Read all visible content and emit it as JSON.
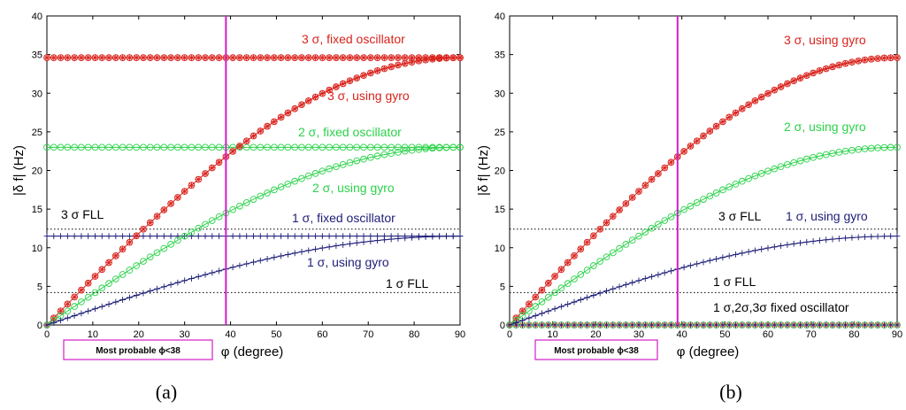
{
  "figure": {
    "caption_a": "(a)",
    "caption_b": "(b)"
  },
  "colors": {
    "red": "#d9221c",
    "green": "#2bd24a",
    "navy": "#1e1e78",
    "magenta": "#d21ec8",
    "black": "#000000"
  },
  "chart_data": [
    {
      "type": "line",
      "panel": "a",
      "xlabel": "φ  (degree)",
      "ylabel": "|δ f| (Hz)",
      "xlim": [
        0,
        90
      ],
      "ylim": [
        0,
        40
      ],
      "xticks": [
        0,
        10,
        20,
        30,
        40,
        50,
        60,
        70,
        80,
        90
      ],
      "yticks": [
        0,
        5,
        10,
        15,
        20,
        25,
        30,
        35,
        40
      ],
      "ytick_labels": [
        "0",
        "5",
        "10",
        "15",
        "20",
        "25",
        "30",
        "35",
        "40"
      ],
      "vertical_line_x": 39,
      "note": "Most probable ϕ<38",
      "series": [
        {
          "name": "3 σ, using gyro",
          "color": "red",
          "marker": "x+o",
          "shape": "sine",
          "amplitude": 34.6
        },
        {
          "name": "2 σ, using gyro",
          "color": "green",
          "marker": "o",
          "shape": "sine",
          "amplitude": 23.0
        },
        {
          "name": "1 σ, using gyro",
          "color": "navy",
          "marker": "+",
          "shape": "sine",
          "amplitude": 11.5
        },
        {
          "name": "3 σ, fixed oscillator",
          "color": "red",
          "marker": "x+o",
          "shape": "const",
          "amplitude": 34.6
        },
        {
          "name": "2 σ, fixed oscillator",
          "color": "green",
          "marker": "o",
          "shape": "const",
          "amplitude": 23.0
        },
        {
          "name": "1 σ, fixed oscillator",
          "color": "navy",
          "marker": "+",
          "shape": "const",
          "amplitude": 11.5
        }
      ],
      "thresholds": [
        {
          "name": "3 σ FLL",
          "y": 12.4
        },
        {
          "name": "1 σ FLL",
          "y": 4.2
        }
      ],
      "labels": [
        {
          "text": "3 σ, fixed oscillator",
          "color": "red"
        },
        {
          "text": "3 σ, using gyro",
          "color": "red"
        },
        {
          "text": "2 σ, fixed oscillator",
          "color": "green"
        },
        {
          "text": "2 σ, using gyro",
          "color": "green"
        },
        {
          "text": "3 σ FLL",
          "color": "black"
        },
        {
          "text": "1 σ, fixed oscillator",
          "color": "navy"
        },
        {
          "text": "1 σ, using gyro",
          "color": "navy"
        },
        {
          "text": "1 σ FLL",
          "color": "black"
        }
      ]
    },
    {
      "type": "line",
      "panel": "b",
      "xlabel": "φ  (degree)",
      "ylabel": "|δ f| (Hz)",
      "xlim": [
        0,
        90
      ],
      "ylim": [
        0,
        40
      ],
      "xticks": [
        0,
        10,
        20,
        30,
        40,
        50,
        60,
        70,
        80,
        90
      ],
      "yticks": [
        0,
        5,
        10,
        15,
        20,
        25,
        30,
        35,
        40
      ],
      "ytick_labels": [
        "0",
        "5",
        "10",
        "15",
        "20",
        "25",
        "30",
        "35",
        "40"
      ],
      "vertical_line_x": 39,
      "note": "Most probable ϕ<38",
      "series": [
        {
          "name": "3 σ, using gyro",
          "color": "red",
          "marker": "x+o",
          "shape": "sine",
          "amplitude": 34.6
        },
        {
          "name": "2 σ, using gyro",
          "color": "green",
          "marker": "o",
          "shape": "sine",
          "amplitude": 23.0
        },
        {
          "name": "1 σ, using gyro",
          "color": "navy",
          "marker": "+",
          "shape": "sine",
          "amplitude": 11.5
        },
        {
          "name": "1 σ,2σ,3σ fixed oscillator",
          "color": "multi",
          "marker": "x+o",
          "shape": "const",
          "amplitude": 0
        }
      ],
      "thresholds": [
        {
          "name": "3 σ FLL",
          "y": 12.4
        },
        {
          "name": "1 σ FLL",
          "y": 4.2
        }
      ],
      "labels": [
        {
          "text": "3 σ, using gyro",
          "color": "red"
        },
        {
          "text": "2 σ, using gyro",
          "color": "green"
        },
        {
          "text": "3 σ FLL",
          "color": "black"
        },
        {
          "text": "1 σ, using gyro",
          "color": "navy"
        },
        {
          "text": "1 σ FLL",
          "color": "black"
        },
        {
          "text": "1 σ,2σ,3σ fixed oscillator",
          "color": "black"
        }
      ]
    }
  ]
}
